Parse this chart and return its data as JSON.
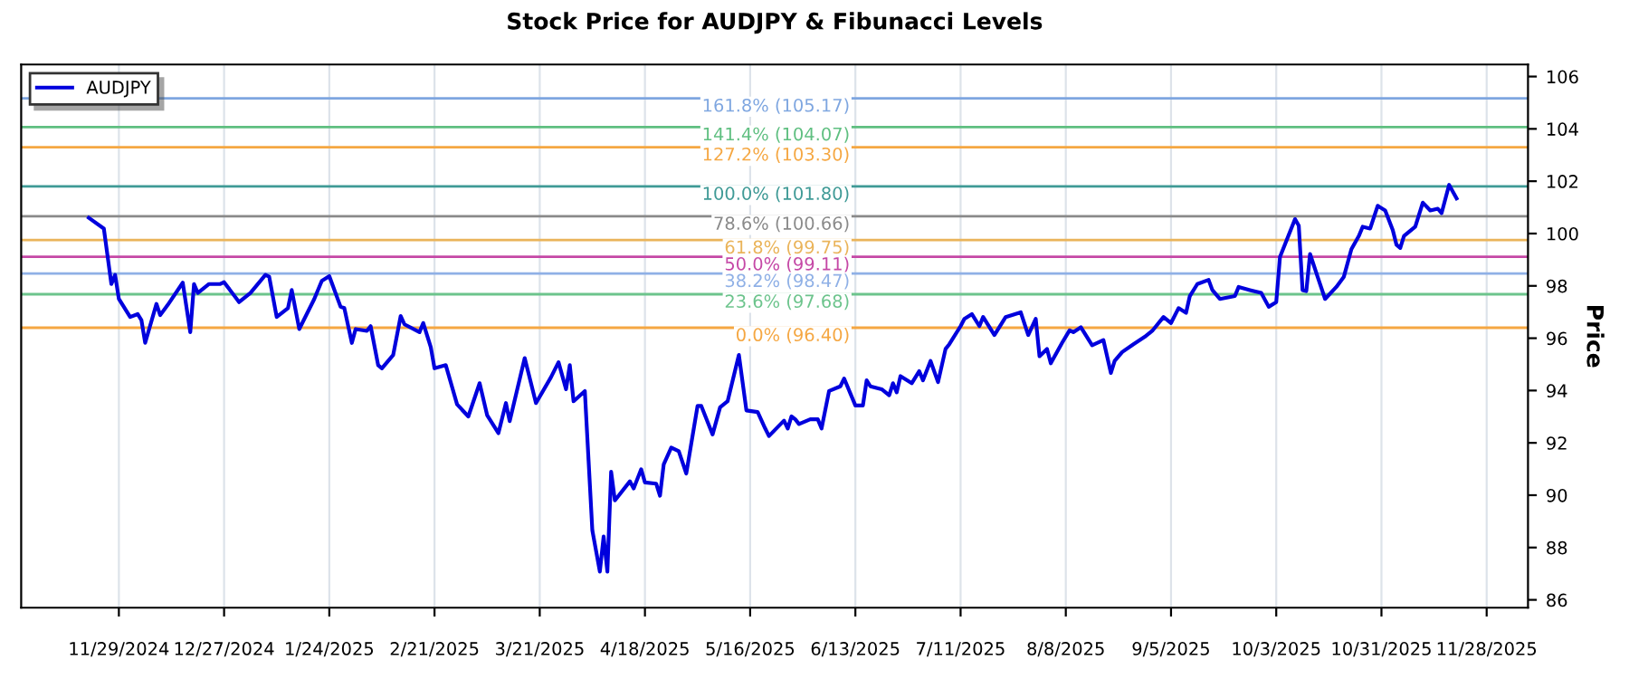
{
  "chart_data": {
    "type": "line",
    "title": "Stock Price for AUDJPY & Fibunacci Levels",
    "ylabel": "Price",
    "xlim": [
      "2024-11-03",
      "2025-12-09"
    ],
    "ylim": [
      85.7,
      106.46
    ],
    "xticks": [
      {
        "value": "2024-11-29",
        "label": "11/29/2024"
      },
      {
        "value": "2024-12-27",
        "label": "12/27/2024"
      },
      {
        "value": "2025-01-24",
        "label": "1/24/2025"
      },
      {
        "value": "2025-02-21",
        "label": "2/21/2025"
      },
      {
        "value": "2025-03-21",
        "label": "3/21/2025"
      },
      {
        "value": "2025-04-18",
        "label": "4/18/2025"
      },
      {
        "value": "2025-05-16",
        "label": "5/16/2025"
      },
      {
        "value": "2025-06-13",
        "label": "6/13/2025"
      },
      {
        "value": "2025-07-11",
        "label": "7/11/2025"
      },
      {
        "value": "2025-08-08",
        "label": "8/8/2025"
      },
      {
        "value": "2025-09-05",
        "label": "9/5/2025"
      },
      {
        "value": "2025-10-03",
        "label": "10/3/2025"
      },
      {
        "value": "2025-10-31",
        "label": "10/31/2025"
      },
      {
        "value": "2025-11-28",
        "label": "11/28/2025"
      }
    ],
    "yticks": [
      86,
      88,
      90,
      92,
      94,
      96,
      98,
      100,
      102,
      104,
      106
    ],
    "grid": "x",
    "legend": "top left",
    "marker": "none",
    "line_style": "solid",
    "series": [
      {
        "name": "AUDJPY",
        "color": "#0000dd",
        "x": [
          "2024-11-21",
          "2024-11-25",
          "2024-11-27",
          "2024-11-28",
          "2024-11-29",
          "2024-12-02",
          "2024-12-04",
          "2024-12-05",
          "2024-12-06",
          "2024-12-09",
          "2024-12-10",
          "2024-12-12",
          "2024-12-16",
          "2024-12-18",
          "2024-12-19",
          "2024-12-20",
          "2024-12-23",
          "2024-12-26",
          "2024-12-27",
          "2024-12-31",
          "2025-01-03",
          "2025-01-07",
          "2025-01-08",
          "2025-01-10",
          "2025-01-13",
          "2025-01-14",
          "2025-01-16",
          "2025-01-20",
          "2025-01-22",
          "2025-01-24",
          "2025-01-27",
          "2025-01-28",
          "2025-01-30",
          "2025-01-31",
          "2025-02-03",
          "2025-02-04",
          "2025-02-06",
          "2025-02-07",
          "2025-02-10",
          "2025-02-12",
          "2025-02-13",
          "2025-02-17",
          "2025-02-18",
          "2025-02-20",
          "2025-02-21",
          "2025-02-24",
          "2025-02-27",
          "2025-03-02",
          "2025-03-05",
          "2025-03-07",
          "2025-03-10",
          "2025-03-12",
          "2025-03-13",
          "2025-03-17",
          "2025-03-20",
          "2025-03-24",
          "2025-03-26",
          "2025-03-28",
          "2025-03-29",
          "2025-03-30",
          "2025-04-02",
          "2025-04-04",
          "2025-04-06",
          "2025-04-07",
          "2025-04-08",
          "2025-04-09",
          "2025-04-10",
          "2025-04-14",
          "2025-04-15",
          "2025-04-17",
          "2025-04-18",
          "2025-04-21",
          "2025-04-22",
          "2025-04-23",
          "2025-04-25",
          "2025-04-27",
          "2025-04-29",
          "2025-05-02",
          "2025-05-03",
          "2025-05-06",
          "2025-05-08",
          "2025-05-10",
          "2025-05-13",
          "2025-05-15",
          "2025-05-18",
          "2025-05-20",
          "2025-05-21",
          "2025-05-25",
          "2025-05-26",
          "2025-05-27",
          "2025-05-28",
          "2025-05-29",
          "2025-06-01",
          "2025-06-03",
          "2025-06-04",
          "2025-06-06",
          "2025-06-09",
          "2025-06-10",
          "2025-06-13",
          "2025-06-15",
          "2025-06-16",
          "2025-06-17",
          "2025-06-20",
          "2025-06-22",
          "2025-06-23",
          "2025-06-24",
          "2025-06-25",
          "2025-06-28",
          "2025-06-30",
          "2025-07-01",
          "2025-07-03",
          "2025-07-05",
          "2025-07-07",
          "2025-07-08",
          "2025-07-11",
          "2025-07-12",
          "2025-07-14",
          "2025-07-16",
          "2025-07-17",
          "2025-07-20",
          "2025-07-23",
          "2025-07-27",
          "2025-07-29",
          "2025-07-31",
          "2025-08-01",
          "2025-08-03",
          "2025-08-04",
          "2025-08-07",
          "2025-08-09",
          "2025-08-10",
          "2025-08-12",
          "2025-08-15",
          "2025-08-18",
          "2025-08-20",
          "2025-08-21",
          "2025-08-23",
          "2025-08-26",
          "2025-08-29",
          "2025-08-31",
          "2025-09-03",
          "2025-09-05",
          "2025-09-07",
          "2025-09-09",
          "2025-09-10",
          "2025-09-12",
          "2025-09-15",
          "2025-09-16",
          "2025-09-18",
          "2025-09-22",
          "2025-09-23",
          "2025-09-26",
          "2025-09-29",
          "2025-10-01",
          "2025-10-03",
          "2025-10-04",
          "2025-10-08",
          "2025-10-09",
          "2025-10-10",
          "2025-10-11",
          "2025-10-12",
          "2025-10-14",
          "2025-10-16",
          "2025-10-19",
          "2025-10-21",
          "2025-10-23",
          "2025-10-25",
          "2025-10-26",
          "2025-10-28",
          "2025-10-30",
          "2025-11-01",
          "2025-11-03",
          "2025-11-04",
          "2025-11-05",
          "2025-11-06",
          "2025-11-09",
          "2025-11-11",
          "2025-11-13",
          "2025-11-15",
          "2025-11-16",
          "2025-11-18",
          "2025-11-20"
        ],
        "values": [
          100.6,
          100.19,
          98.07,
          98.42,
          97.5,
          96.81,
          96.92,
          96.69,
          95.82,
          97.31,
          96.88,
          97.27,
          98.12,
          96.23,
          98.07,
          97.73,
          98.07,
          98.07,
          98.14,
          97.38,
          97.73,
          98.42,
          98.35,
          96.81,
          97.15,
          97.84,
          96.35,
          97.5,
          98.19,
          98.37,
          97.2,
          97.15,
          95.82,
          96.35,
          96.28,
          96.46,
          94.97,
          94.85,
          95.36,
          96.85,
          96.53,
          96.23,
          96.58,
          95.66,
          94.85,
          94.97,
          93.47,
          93.01,
          94.28,
          93.06,
          92.37,
          93.52,
          92.83,
          95.24,
          93.52,
          94.51,
          95.08,
          94.05,
          94.97,
          93.59,
          93.98,
          88.65,
          87.08,
          88.42,
          87.08,
          90.9,
          89.8,
          90.53,
          90.26,
          90.99,
          90.49,
          90.44,
          89.98,
          91.18,
          91.82,
          91.68,
          90.83,
          93.41,
          93.41,
          92.32,
          93.36,
          93.59,
          95.36,
          93.24,
          93.18,
          92.55,
          92.26,
          92.85,
          92.55,
          93.01,
          92.9,
          92.72,
          92.9,
          92.9,
          92.55,
          93.98,
          94.16,
          94.46,
          93.43,
          93.43,
          94.39,
          94.16,
          94.05,
          93.82,
          94.28,
          93.93,
          94.55,
          94.28,
          94.74,
          94.39,
          95.13,
          94.32,
          95.59,
          95.77,
          96.46,
          96.74,
          96.92,
          96.46,
          96.81,
          96.12,
          96.81,
          96.99,
          96.12,
          96.74,
          95.31,
          95.59,
          95.04,
          95.82,
          96.3,
          96.23,
          96.42,
          95.73,
          95.93,
          94.67,
          95.13,
          95.47,
          95.77,
          96.05,
          96.28,
          96.81,
          96.58,
          97.15,
          96.97,
          97.61,
          98.07,
          98.23,
          97.84,
          97.5,
          97.61,
          97.96,
          97.84,
          97.73,
          97.2,
          97.38,
          99.11,
          100.55,
          100.3,
          97.84,
          97.8,
          99.22,
          98.35,
          97.5,
          97.96,
          98.35,
          99.4,
          99.91,
          100.26,
          100.19,
          101.06,
          100.88,
          100.14,
          99.57,
          99.45,
          99.91,
          100.26,
          101.18,
          100.88,
          100.95,
          100.78,
          101.86,
          101.34
        ]
      }
    ],
    "ref_lines": [
      {
        "axis": "y",
        "value": 105.17,
        "label": "161.8% (105.17)",
        "color": "#7ea6e0"
      },
      {
        "axis": "y",
        "value": 104.07,
        "label": "141.4% (104.07)",
        "color": "#5fbf80"
      },
      {
        "axis": "y",
        "value": 103.3,
        "label": "127.2% (103.30)",
        "color": "#f5a742"
      },
      {
        "axis": "y",
        "value": 101.8,
        "label": "100.0% (101.80)",
        "color": "#3f9a96"
      },
      {
        "axis": "y",
        "value": 100.66,
        "label": "78.6% (100.66)",
        "color": "#8a8a8a"
      },
      {
        "axis": "y",
        "value": 99.75,
        "label": "61.8% (99.75)",
        "color": "#eab45a"
      },
      {
        "axis": "y",
        "value": 99.11,
        "label": "50.0% (99.11)",
        "color": "#c548a6"
      },
      {
        "axis": "y",
        "value": 98.47,
        "label": "38.2% (98.47)",
        "color": "#8fb0e6"
      },
      {
        "axis": "y",
        "value": 97.68,
        "label": "23.6% (97.68)",
        "color": "#6cc48c"
      },
      {
        "axis": "y",
        "value": 96.4,
        "label": "0.0% (96.40)",
        "color": "#f5a742"
      }
    ]
  }
}
